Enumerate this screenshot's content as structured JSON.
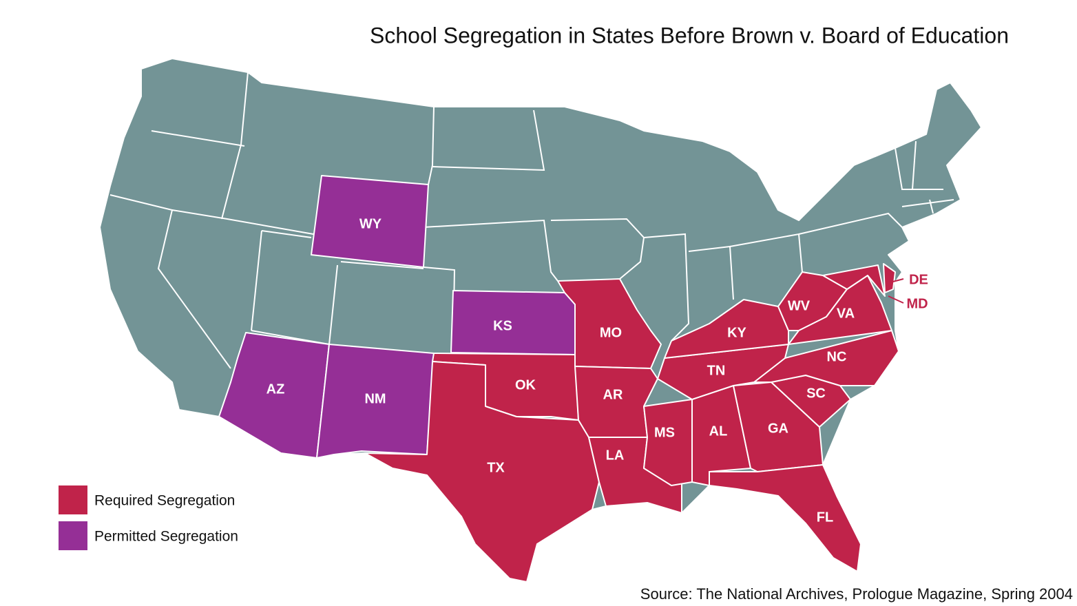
{
  "title": "School Segregation in States Before Brown v. Board of Education",
  "legend": [
    {
      "label": "Required Segregation",
      "color": "#c0234a"
    },
    {
      "label": "Permitted Segregation",
      "color": "#952f96"
    }
  ],
  "base_color": "#739496",
  "states": [
    {
      "label": "WY",
      "color": "#952f96"
    },
    {
      "label": "KS",
      "color": "#952f96"
    },
    {
      "label": "AZ",
      "color": "#952f96"
    },
    {
      "label": "NM",
      "color": "#952f96"
    },
    {
      "label": "OK",
      "color": "#c0234a"
    },
    {
      "label": "TX",
      "color": "#c0234a"
    },
    {
      "label": "MO",
      "color": "#c0234a"
    },
    {
      "label": "AR",
      "color": "#c0234a"
    },
    {
      "label": "LA",
      "color": "#c0234a"
    },
    {
      "label": "MS",
      "color": "#c0234a"
    },
    {
      "label": "AL",
      "color": "#c0234a"
    },
    {
      "label": "GA",
      "color": "#c0234a"
    },
    {
      "label": "FL",
      "color": "#c0234a"
    },
    {
      "label": "SC",
      "color": "#c0234a"
    },
    {
      "label": "NC",
      "color": "#c0234a"
    },
    {
      "label": "TN",
      "color": "#c0234a"
    },
    {
      "label": "KY",
      "color": "#c0234a"
    },
    {
      "label": "WV",
      "color": "#c0234a"
    },
    {
      "label": "VA",
      "color": "#c0234a"
    },
    {
      "label": "MD",
      "color": "#c0234a"
    },
    {
      "label": "DE",
      "color": "#c0234a"
    }
  ],
  "source": "Source: The National Archives, Prologue Magazine, Spring 2004"
}
